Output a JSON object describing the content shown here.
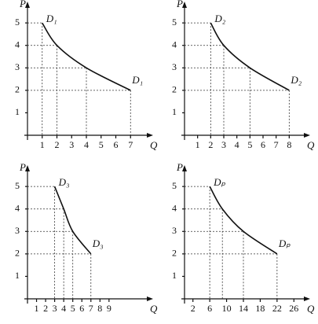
{
  "chart_data": [
    {
      "type": "line",
      "x_label": "Q",
      "y_label": "P",
      "xlim": [
        0,
        8
      ],
      "ylim": [
        0,
        5.6
      ],
      "xticks": [
        1,
        2,
        3,
        4,
        5,
        6,
        7
      ],
      "yticks": [
        1,
        2,
        3,
        4,
        5
      ],
      "series": [
        {
          "name": "D₁",
          "color": "#111",
          "x": [
            1,
            2,
            4,
            7
          ],
          "values": [
            5,
            4,
            3,
            2
          ]
        }
      ]
    },
    {
      "type": "line",
      "x_label": "Q",
      "y_label": "P",
      "xlim": [
        0,
        9
      ],
      "ylim": [
        0,
        5.6
      ],
      "xticks": [
        1,
        2,
        3,
        4,
        5,
        6,
        7,
        8
      ],
      "yticks": [
        1,
        2,
        3,
        4,
        5
      ],
      "series": [
        {
          "name": "D₂",
          "color": "#111",
          "x": [
            2,
            3,
            5,
            8
          ],
          "values": [
            5,
            4,
            3,
            2
          ]
        }
      ]
    },
    {
      "type": "line",
      "x_label": "Q",
      "y_label": "P",
      "xlim": [
        0,
        13
      ],
      "ylim": [
        0,
        5.6
      ],
      "xticks": [
        1,
        2,
        3,
        4,
        5,
        6,
        7,
        8,
        9
      ],
      "yticks": [
        1,
        2,
        3,
        4,
        5
      ],
      "series": [
        {
          "name": "D₃",
          "color": "#111",
          "x": [
            3,
            4,
            5,
            7
          ],
          "values": [
            5,
            4,
            3,
            2
          ]
        }
      ]
    },
    {
      "type": "line",
      "x_label": "Q",
      "y_label": "P",
      "xlim": [
        0,
        28
      ],
      "ylim": [
        0,
        5.6
      ],
      "xticks": [
        2,
        6,
        10,
        14,
        18,
        22,
        26
      ],
      "yticks": [
        1,
        2,
        3,
        4,
        5
      ],
      "series": [
        {
          "name": "Dₚ",
          "color": "#111",
          "x": [
            6,
            9,
            14,
            22
          ],
          "values": [
            5,
            4,
            3,
            2
          ]
        }
      ]
    }
  ]
}
